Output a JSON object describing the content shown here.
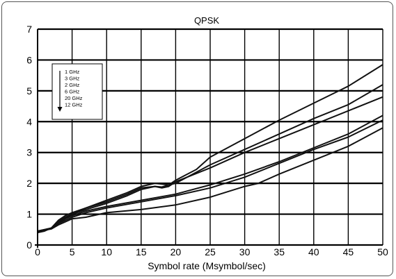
{
  "chart_data": {
    "type": "line",
    "title": "QPSK",
    "xlabel": "Symbol rate (Msymbol/sec)",
    "ylabel": "",
    "xlim": [
      0,
      50
    ],
    "ylim": [
      0,
      7
    ],
    "xticks": [
      0,
      5,
      10,
      15,
      20,
      25,
      30,
      35,
      40,
      45,
      50
    ],
    "yticks": [
      0,
      1,
      2,
      3,
      4,
      5,
      6,
      7
    ],
    "grid": true,
    "legend_position": "top-left",
    "legend_entries": [
      "1 GHz",
      "3 GHz",
      "2 GHz",
      "6 GHz",
      "20 GHz",
      "12 GHz"
    ],
    "series": [
      {
        "name": "1 GHz",
        "x": [
          0,
          1,
          2,
          3,
          4,
          5,
          7,
          10,
          13,
          15,
          17,
          19,
          20,
          23,
          25,
          30,
          35,
          40,
          45,
          50
        ],
        "y": [
          0.45,
          0.5,
          0.55,
          0.75,
          0.9,
          1.0,
          1.2,
          1.45,
          1.7,
          1.9,
          2.0,
          1.95,
          2.1,
          2.45,
          2.85,
          3.45,
          4.05,
          4.6,
          5.15,
          5.85
        ]
      },
      {
        "name": "3 GHz",
        "x": [
          0,
          1,
          2,
          3,
          4,
          5,
          7,
          10,
          13,
          15,
          17,
          18,
          19,
          20,
          25,
          30,
          35,
          40,
          45,
          50
        ],
        "y": [
          0.4,
          0.48,
          0.55,
          0.8,
          0.95,
          1.05,
          1.2,
          1.4,
          1.65,
          1.85,
          1.9,
          1.88,
          1.95,
          2.0,
          2.6,
          3.1,
          3.6,
          4.1,
          4.55,
          5.2
        ]
      },
      {
        "name": "2 GHz",
        "x": [
          0,
          1,
          2,
          3,
          4,
          5,
          7,
          10,
          13,
          15,
          17,
          18,
          19,
          20,
          25,
          30,
          35,
          40,
          45,
          50
        ],
        "y": [
          0.4,
          0.45,
          0.55,
          0.7,
          0.85,
          1.0,
          1.15,
          1.35,
          1.6,
          1.8,
          1.9,
          1.85,
          1.9,
          2.05,
          2.5,
          3.0,
          3.45,
          3.9,
          4.35,
          4.8
        ]
      },
      {
        "name": "6 GHz",
        "x": [
          0,
          1,
          2,
          3,
          4,
          5,
          7,
          10,
          15,
          20,
          25,
          30,
          35,
          40,
          45,
          50
        ],
        "y": [
          0.45,
          0.48,
          0.55,
          0.75,
          0.85,
          0.95,
          1.1,
          1.25,
          1.45,
          1.65,
          1.95,
          2.3,
          2.7,
          3.15,
          3.6,
          4.2
        ]
      },
      {
        "name": "20 GHz",
        "x": [
          0,
          1,
          2,
          3,
          4,
          5,
          7,
          10,
          15,
          20,
          25,
          30,
          35,
          40,
          45,
          50
        ],
        "y": [
          0.45,
          0.5,
          0.55,
          0.7,
          0.8,
          0.9,
          1.05,
          1.2,
          1.4,
          1.6,
          1.85,
          2.2,
          2.65,
          3.1,
          3.5,
          4.05
        ]
      },
      {
        "name": "12 GHz",
        "x": [
          0,
          1,
          2,
          3,
          4,
          5,
          7,
          10,
          15,
          20,
          25,
          30,
          32,
          35,
          40,
          45,
          50
        ],
        "y": [
          0.45,
          0.48,
          0.52,
          0.65,
          0.75,
          0.85,
          0.9,
          1.05,
          1.15,
          1.3,
          1.55,
          1.9,
          2.0,
          2.3,
          2.75,
          3.2,
          3.8
        ]
      }
    ]
  }
}
